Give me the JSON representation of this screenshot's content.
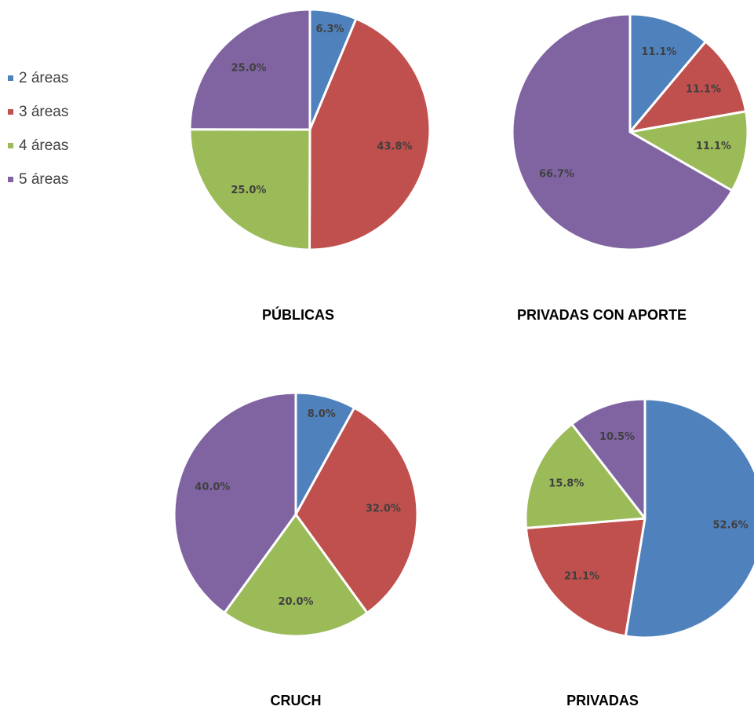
{
  "legend": {
    "categories": [
      "2 áreas",
      "3 áreas",
      "4 áreas",
      "5 áreas"
    ],
    "colors": [
      "#4f81bd",
      "#c0504d",
      "#9bbb59",
      "#8064a2"
    ]
  },
  "chart_data": [
    {
      "type": "pie",
      "title": "PÚBLICAS",
      "values": [
        6.3,
        43.8,
        25.0,
        25.0
      ],
      "value_labels": [
        "6.3%",
        "43.8%",
        "25.0%",
        "25.0%"
      ]
    },
    {
      "type": "pie",
      "title": "PRIVADAS CON APORTE",
      "values": [
        11.1,
        11.1,
        11.1,
        66.7
      ],
      "value_labels": [
        "11.1%",
        "11.1%",
        "11.1%",
        "66.7%"
      ]
    },
    {
      "type": "pie",
      "title": "CRUCH",
      "values": [
        8.0,
        32.0,
        20.0,
        40.0
      ],
      "value_labels": [
        "8.0%",
        "32.0%",
        "20.0%",
        "40.0%"
      ]
    },
    {
      "type": "pie",
      "title": "PRIVADAS",
      "values": [
        52.6,
        21.1,
        15.8,
        10.5
      ],
      "value_labels": [
        "52.6%",
        "21.1%",
        "15.8%",
        "10.5%"
      ]
    }
  ]
}
